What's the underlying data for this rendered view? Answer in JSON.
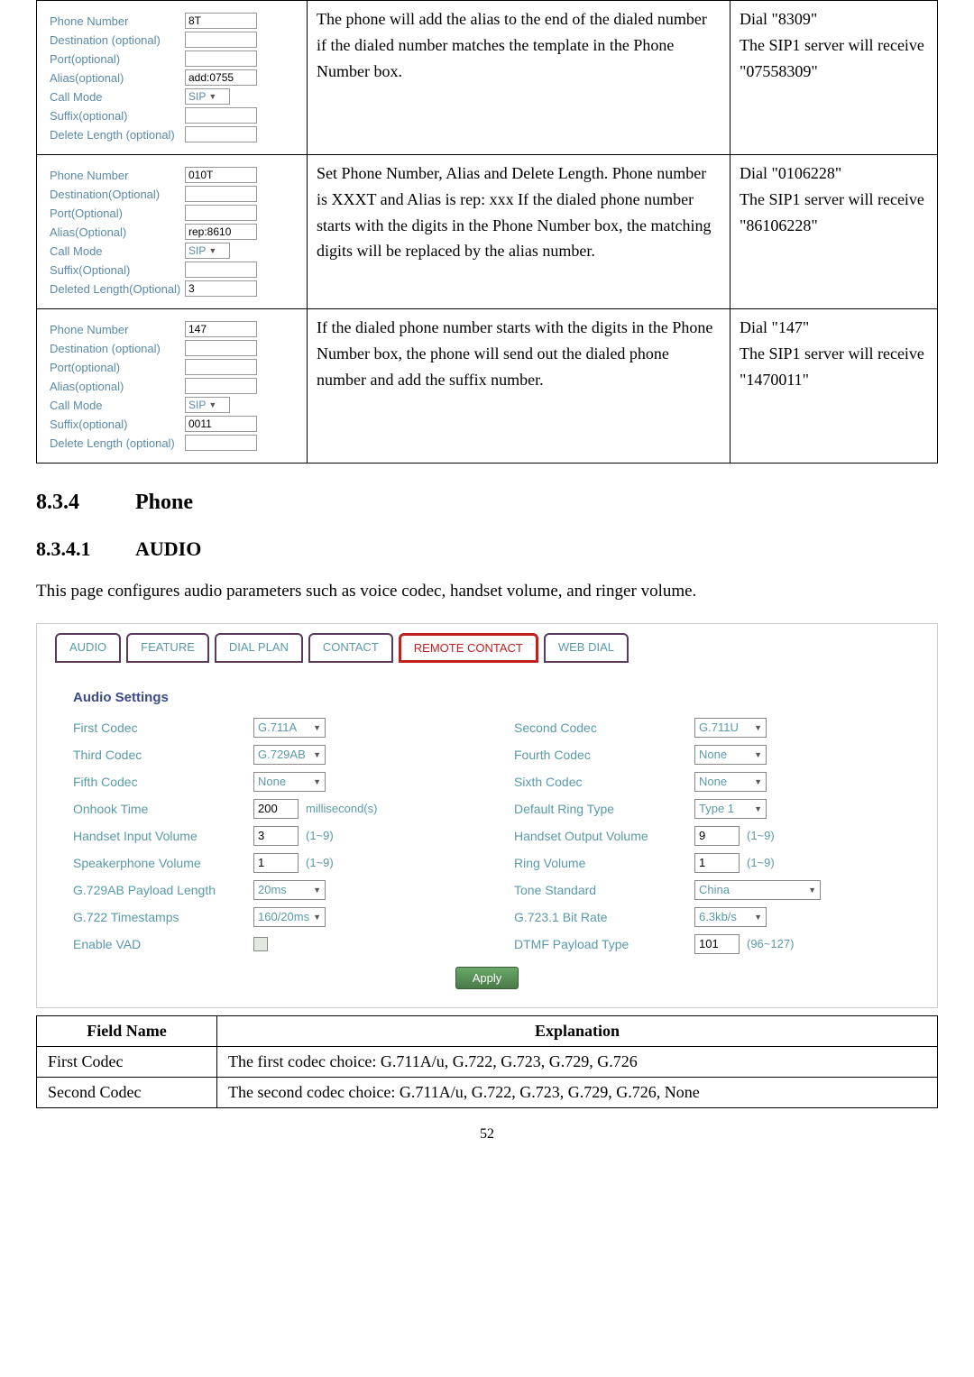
{
  "table1": {
    "rows": [
      {
        "form": {
          "labels": [
            "Phone Number",
            "Destination (optional)",
            "Port(optional)",
            "Alias(optional)",
            "Call Mode",
            "Suffix(optional)",
            "Delete Length (optional)"
          ],
          "values": {
            "phone": "8T",
            "dest": "",
            "port": "",
            "alias": "add:0755",
            "mode": "SIP",
            "suffix": "",
            "delete": ""
          }
        },
        "desc": "The phone will add the alias to the end of the dialed number if the dialed number matches the template in the Phone Number box.",
        "result": "Dial \"8309\"\nThe SIP1 server will receive \"07558309\""
      },
      {
        "form": {
          "labels": [
            "Phone Number",
            "Destination(Optional)",
            "Port(Optional)",
            "Alias(Optional)",
            "Call Mode",
            "Suffix(Optional)",
            "Deleted Length(Optional)"
          ],
          "values": {
            "phone": "010T",
            "dest": "",
            "port": "",
            "alias": "rep:8610",
            "mode": "SIP",
            "suffix": "",
            "delete": "3"
          }
        },
        "desc": "Set Phone Number, Alias and Delete Length. Phone number is XXXT and Alias is rep: xxx If the dialed phone number starts with the digits in the Phone Number box, the matching digits will be replaced by the alias number.",
        "result": "Dial \"0106228\"\nThe SIP1 server will receive \"86106228\""
      },
      {
        "form": {
          "labels": [
            "Phone Number",
            "Destination (optional)",
            "Port(optional)",
            "Alias(optional)",
            "Call Mode",
            "Suffix(optional)",
            "Delete Length (optional)"
          ],
          "values": {
            "phone": "147",
            "dest": "",
            "port": "",
            "alias": "",
            "mode": "SIP",
            "suffix": "0011",
            "delete": ""
          }
        },
        "desc": "If the dialed phone number starts with the digits in the Phone Number box, the phone will send out the dialed phone number and add the suffix number.",
        "result": "Dial \"147\"\nThe SIP1 server will receive \"1470011\""
      }
    ]
  },
  "sec": {
    "num": "8.3.4",
    "title": "Phone"
  },
  "sub": {
    "num": "8.3.4.1",
    "title": "AUDIO"
  },
  "intro": "This page configures audio parameters such as voice codec, handset volume, and ringer volume.",
  "tabs": [
    "AUDIO",
    "FEATURE",
    "DIAL PLAN",
    "CONTACT",
    "REMOTE CONTACT",
    "WEB DIAL"
  ],
  "audio": {
    "title": "Audio Settings",
    "left": [
      {
        "label": "First Codec",
        "type": "select",
        "value": "G.711A"
      },
      {
        "label": "Third Codec",
        "type": "select",
        "value": "G.729AB"
      },
      {
        "label": "Fifth Codec",
        "type": "select",
        "value": "None"
      },
      {
        "label": "Onhook Time",
        "type": "input",
        "value": "200",
        "hint": "millisecond(s)"
      },
      {
        "label": "Handset Input Volume",
        "type": "input",
        "value": "3",
        "hint": "(1~9)"
      },
      {
        "label": "Speakerphone Volume",
        "type": "input",
        "value": "1",
        "hint": "(1~9)"
      },
      {
        "label": "G.729AB Payload Length",
        "type": "select",
        "value": "20ms"
      },
      {
        "label": "G.722 Timestamps",
        "type": "select",
        "value": "160/20ms"
      },
      {
        "label": "Enable VAD",
        "type": "checkbox",
        "value": ""
      }
    ],
    "right": [
      {
        "label": "Second Codec",
        "type": "select",
        "value": "G.711U"
      },
      {
        "label": "Fourth Codec",
        "type": "select",
        "value": "None"
      },
      {
        "label": "Sixth Codec",
        "type": "select",
        "value": "None"
      },
      {
        "label": "Default Ring Type",
        "type": "select",
        "value": "Type 1"
      },
      {
        "label": "Handset Output Volume",
        "type": "input",
        "value": "9",
        "hint": "(1~9)"
      },
      {
        "label": "Ring Volume",
        "type": "input",
        "value": "1",
        "hint": "(1~9)"
      },
      {
        "label": "Tone Standard",
        "type": "select",
        "value": "China",
        "wide": true
      },
      {
        "label": "G.723.1 Bit Rate",
        "type": "select",
        "value": "6.3kb/s"
      },
      {
        "label": "DTMF Payload Type",
        "type": "input",
        "value": "101",
        "hint": "(96~127)"
      }
    ],
    "apply": "Apply"
  },
  "fieldTable": {
    "headers": [
      "Field Name",
      "Explanation"
    ],
    "rows": [
      [
        "First Codec",
        "The first codec choice: G.711A/u, G.722, G.723, G.729, G.726"
      ],
      [
        "Second Codec",
        "The second codec choice: G.711A/u, G.722, G.723, G.729, G.726, None"
      ]
    ]
  },
  "pagenum": "52"
}
